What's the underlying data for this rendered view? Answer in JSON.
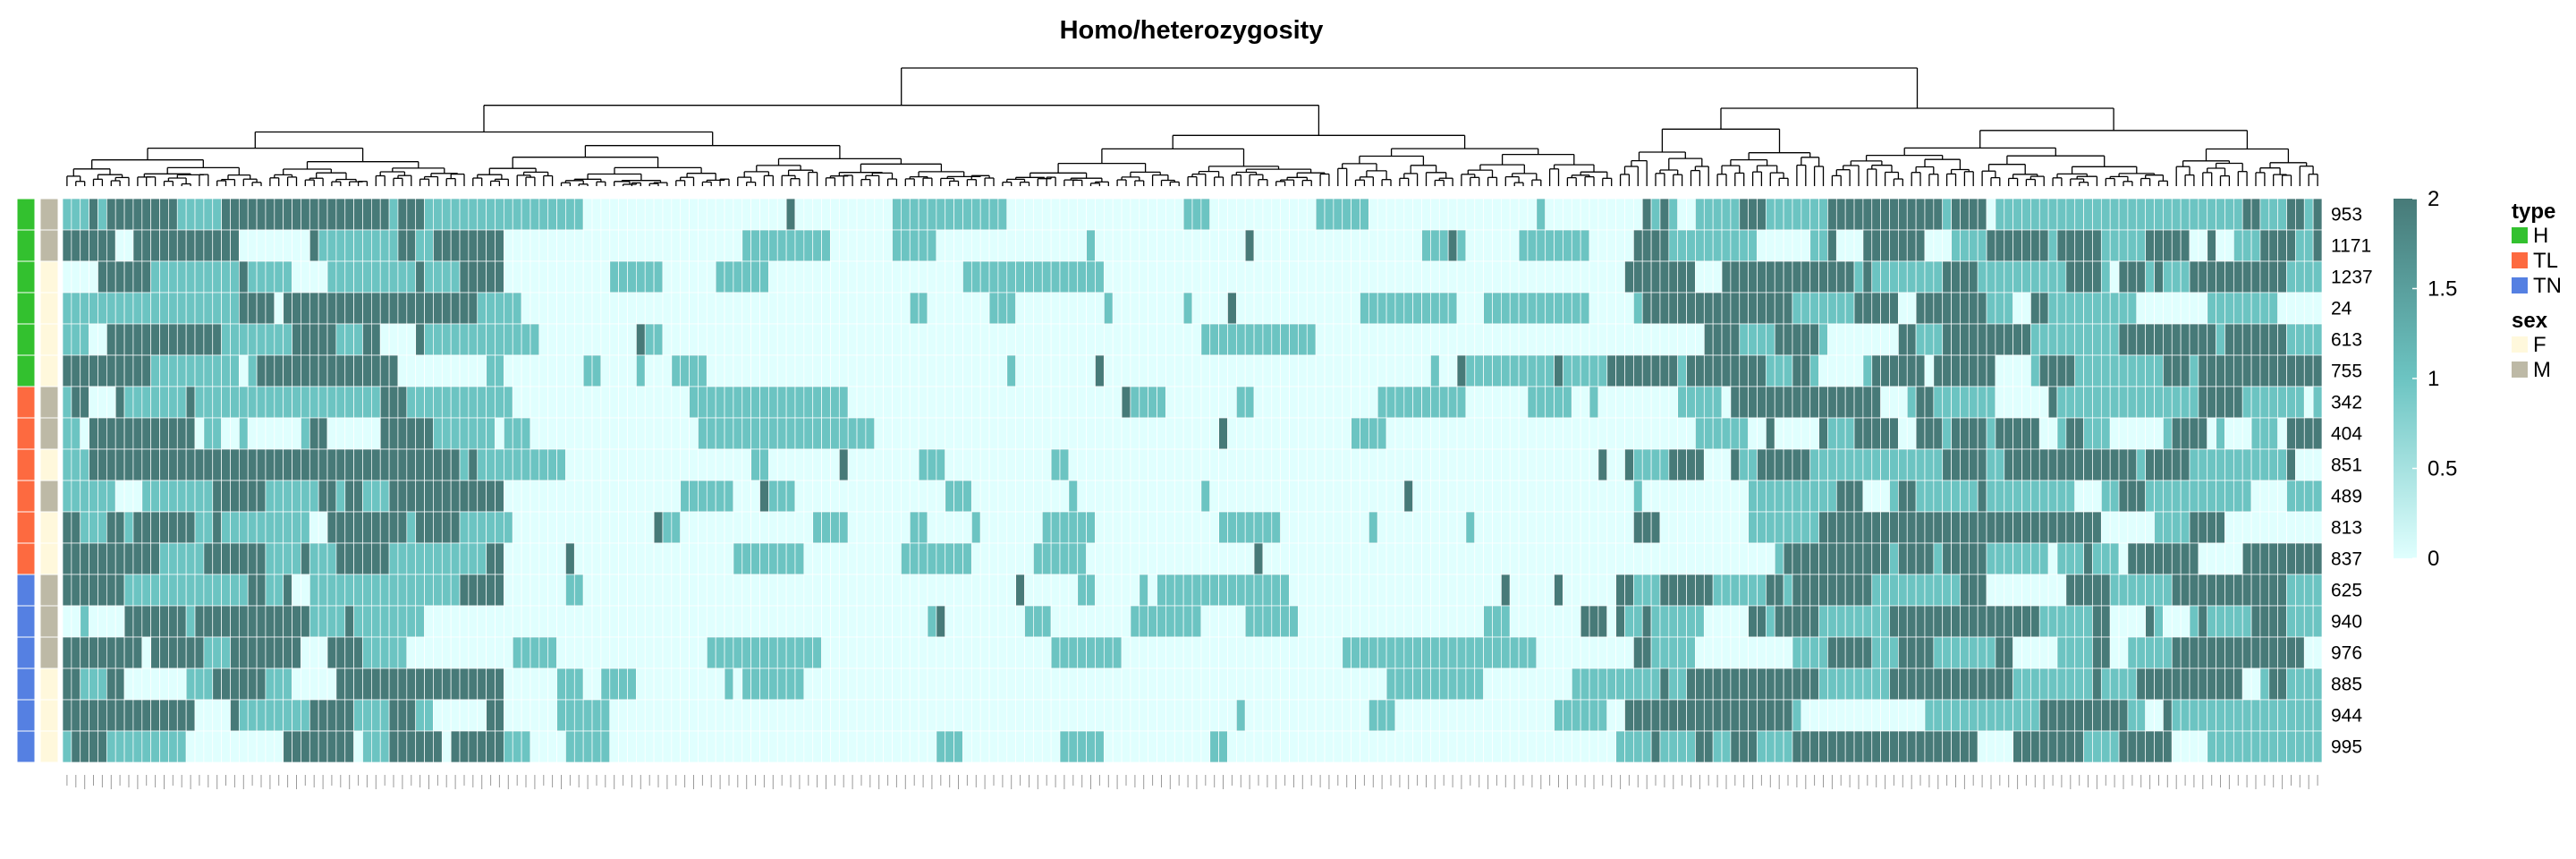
{
  "chart_data": {
    "type": "heatmap",
    "title": "Homo/heterozygosity",
    "rows": [
      "953",
      "1171",
      "1237",
      "24",
      "613",
      "755",
      "342",
      "404",
      "851",
      "489",
      "813",
      "837",
      "625",
      "940",
      "976",
      "885",
      "944",
      "995"
    ],
    "n_columns": 256,
    "column_dendrogram": true,
    "value_range": [
      0,
      2
    ],
    "colorbar": {
      "ticks": [
        "2",
        "1.5",
        "1",
        "0.5",
        "0"
      ],
      "tick_values": [
        2,
        1.5,
        1,
        0.5,
        0
      ],
      "colors": [
        "#e0fffe",
        "#6cc4c2",
        "#477a78"
      ]
    },
    "annotations": {
      "type": {
        "title": "type",
        "levels": [
          {
            "label": "H",
            "color": "#33c12f"
          },
          {
            "label": "TL",
            "color": "#fd6a40"
          },
          {
            "label": "TN",
            "color": "#5580e2"
          }
        ],
        "values": [
          "H",
          "H",
          "H",
          "H",
          "H",
          "H",
          "TL",
          "TL",
          "TL",
          "TL",
          "TL",
          "TL",
          "TN",
          "TN",
          "TN",
          "TN",
          "TN",
          "TN"
        ]
      },
      "sex": {
        "title": "sex",
        "levels": [
          {
            "label": "F",
            "color": "#fff8dc"
          },
          {
            "label": "M",
            "color": "#bdb9a6"
          }
        ],
        "values": [
          "M",
          "M",
          "F",
          "F",
          "F",
          "F",
          "M",
          "M",
          "F",
          "M",
          "F",
          "F",
          "M",
          "M",
          "M",
          "F",
          "F",
          "F"
        ]
      }
    },
    "column_blocks": [
      {
        "from": 0,
        "to": 50,
        "level": "high"
      },
      {
        "from": 50,
        "to": 176,
        "level": "sparse"
      },
      {
        "from": 176,
        "to": 256,
        "level": "high"
      }
    ]
  }
}
